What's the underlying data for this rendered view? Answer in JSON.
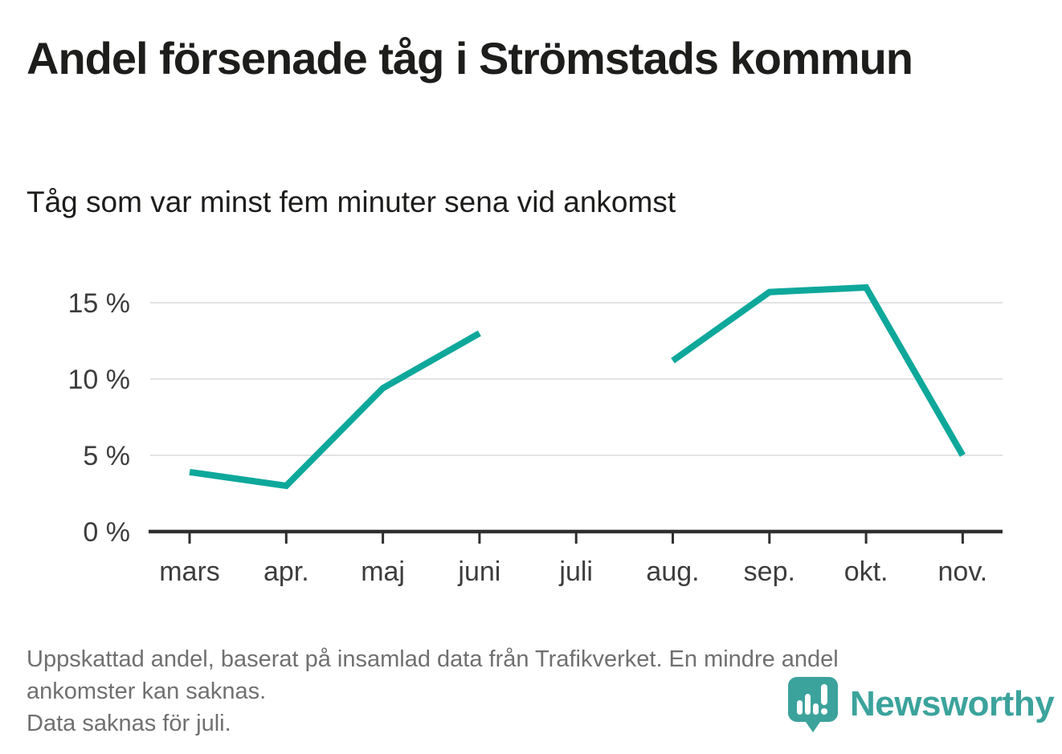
{
  "header": {
    "title": "Andel försenade tåg i Strömstads kommun",
    "subtitle": "Tåg som var minst fem minuter sena vid ankomst"
  },
  "chart_data": {
    "type": "line",
    "title": "Andel försenade tåg i Strömstads kommun",
    "subtitle": "Tåg som var minst fem minuter sena vid ankomst",
    "categories": [
      "mars",
      "apr.",
      "maj",
      "juni",
      "juli",
      "aug.",
      "sep.",
      "okt.",
      "nov."
    ],
    "series": [
      {
        "name": "Andel försenade tåg",
        "values": [
          3.9,
          3.0,
          9.4,
          13.0,
          null,
          11.2,
          15.7,
          16.0,
          5.0
        ]
      }
    ],
    "unit": "%",
    "missing_categories": [
      "juli"
    ],
    "yticks": [
      0,
      5,
      10,
      15
    ],
    "ytick_labels": [
      "0 %",
      "5 %",
      "10 %",
      "15 %"
    ],
    "ylim": [
      0,
      17
    ],
    "xlabel": "",
    "ylabel": "",
    "grid": "horizontal",
    "legend": "none"
  },
  "footer": {
    "notes": [
      "Uppskattad andel, baserat på insamlad data från Trafikverket. En mindre andel",
      "ankomster kan saknas.",
      "Data saknas för juli."
    ],
    "brand": "Newsworthy"
  },
  "colors": {
    "accent_line": "#0ea89b",
    "title_text": "#1d1d1b",
    "axis": "#2f2f2f",
    "tick_text": "#3d3d3d",
    "grid": "#e3e3e3",
    "note_text": "#707070",
    "brand_teal": "#3ba39c"
  }
}
